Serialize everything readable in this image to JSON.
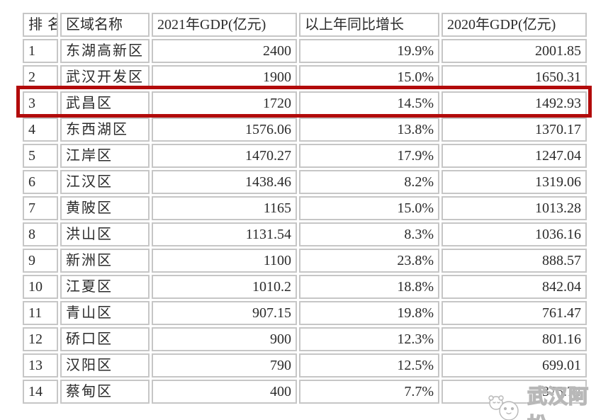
{
  "page": {
    "background_color": "#ffffff",
    "grid_color": "#c6c6c6",
    "text_color": "#2b2b2b"
  },
  "table": {
    "columns": [
      "排名",
      "区域名称",
      "2021年GDP(亿元)",
      "以上年同比增长",
      "2020年GDP(亿元)"
    ],
    "rows": [
      {
        "rank": "1",
        "district": "东湖高新区",
        "gdp2021": "2400",
        "growth": "19.9%",
        "gdp2020": "2001.85"
      },
      {
        "rank": "2",
        "district": "武汉开发区",
        "gdp2021": "1900",
        "growth": "15.0%",
        "gdp2020": "1650.31"
      },
      {
        "rank": "3",
        "district": "武昌区",
        "gdp2021": "1720",
        "growth": "14.5%",
        "gdp2020": "1492.93"
      },
      {
        "rank": "4",
        "district": "东西湖区",
        "gdp2021": "1576.06",
        "growth": "13.8%",
        "gdp2020": "1370.17"
      },
      {
        "rank": "5",
        "district": "江岸区",
        "gdp2021": "1470.27",
        "growth": "17.9%",
        "gdp2020": "1247.04"
      },
      {
        "rank": "6",
        "district": "江汉区",
        "gdp2021": "1438.46",
        "growth": "8.2%",
        "gdp2020": "1319.06"
      },
      {
        "rank": "7",
        "district": "黄陂区",
        "gdp2021": "1165",
        "growth": "15.0%",
        "gdp2020": "1013.28"
      },
      {
        "rank": "8",
        "district": "洪山区",
        "gdp2021": "1131.54",
        "growth": "8.3%",
        "gdp2020": "1036.16"
      },
      {
        "rank": "9",
        "district": "新洲区",
        "gdp2021": "1100",
        "growth": "23.8%",
        "gdp2020": "888.57"
      },
      {
        "rank": "10",
        "district": "江夏区",
        "gdp2021": "1010.2",
        "growth": "18.8%",
        "gdp2020": "842.04"
      },
      {
        "rank": "11",
        "district": "青山区",
        "gdp2021": "907.15",
        "growth": "19.8%",
        "gdp2020": "761.47"
      },
      {
        "rank": "12",
        "district": "硚口区",
        "gdp2021": "900",
        "growth": "12.3%",
        "gdp2020": "801.16"
      },
      {
        "rank": "13",
        "district": "汉阳区",
        "gdp2021": "790",
        "growth": "12.5%",
        "gdp2020": "699.01"
      },
      {
        "rank": "14",
        "district": "蔡甸区",
        "gdp2021": "400",
        "growth": "7.7%",
        "gdp2020": "375.74",
        "gdp2020_obscured_by_watermark": true
      }
    ],
    "highlight": {
      "row_rank": "3",
      "district": "武昌区",
      "color": "#b20b0b"
    }
  },
  "watermark": {
    "text": "武汉阿松",
    "icon": "two-cartoon-faces",
    "stroke_color": "#b8b8b8"
  }
}
